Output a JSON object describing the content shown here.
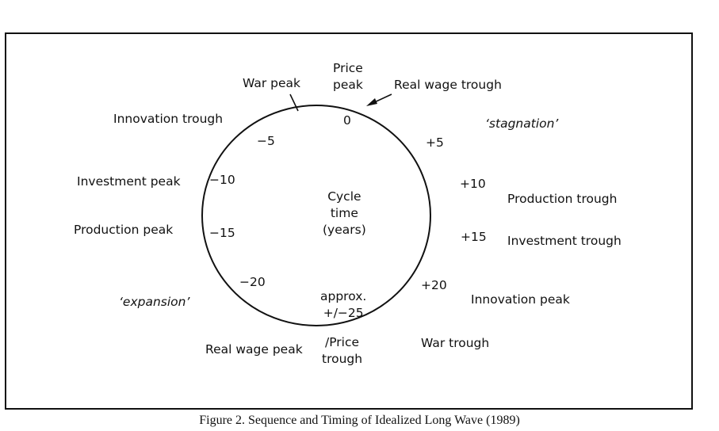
{
  "diagram": {
    "center_label": [
      "Cycle",
      "time",
      "(years)"
    ],
    "ticks": {
      "t0": "0",
      "t5": "+5",
      "t10": "+10",
      "t15": "+15",
      "t20": "+20",
      "bottom": [
        "approx.",
        "+/−25"
      ],
      "tm20": "−20",
      "tm15": "−15",
      "tm10": "−10",
      "tm5": "−5"
    },
    "events": {
      "price_peak": [
        "Price",
        "peak"
      ],
      "war_peak": "War peak",
      "real_wage_trough": "Real wage trough",
      "stagnation": "‘stagnation’",
      "innovation_trough": "Innovation trough",
      "production_trough": "Production trough",
      "investment_trough": "Investment trough",
      "innovation_peak": "Innovation peak",
      "war_trough": "War trough",
      "price_trough": [
        "/Price",
        "trough"
      ],
      "real_wage_peak": "Real wage peak",
      "expansion": "‘expansion’",
      "production_peak": "Production peak",
      "investment_peak": "Investment peak"
    }
  },
  "caption": "Figure 2.  Sequence and Timing of Idealized Long Wave (1989)"
}
